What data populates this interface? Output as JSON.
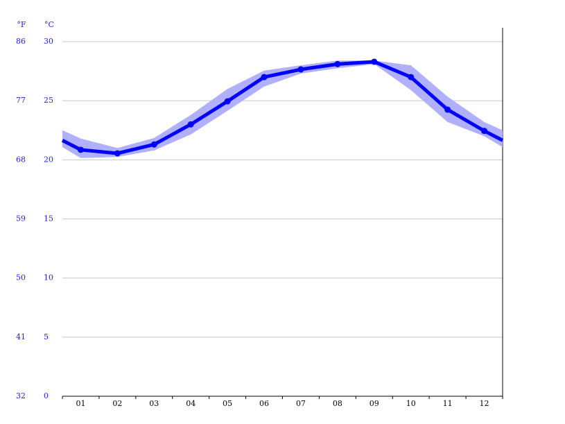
{
  "chart_data": {
    "type": "line",
    "y_unit_label": "°C",
    "y2_unit_label": "°F",
    "categories": [
      "01",
      "02",
      "03",
      "04",
      "05",
      "06",
      "07",
      "08",
      "09",
      "10",
      "11",
      "12"
    ],
    "series": [
      {
        "color": "#0000ff",
        "values": [
          20.85,
          20.55,
          21.3,
          23.0,
          24.95,
          27.0,
          27.65,
          28.1,
          28.3,
          27.0,
          24.25,
          22.45
        ]
      }
    ],
    "band": {
      "color": "#b0b0ff",
      "low": [
        20.15,
        20.25,
        20.8,
        22.15,
        24.15,
        26.2,
        27.3,
        27.75,
        28.1,
        25.9,
        23.2,
        22.0
      ],
      "high": [
        21.8,
        21.0,
        21.85,
        23.8,
        26.0,
        27.55,
        28.0,
        28.4,
        28.4,
        28.0,
        25.35,
        23.2
      ]
    },
    "ylim": [
      0,
      30
    ],
    "yticks": [
      0,
      5,
      10,
      15,
      20,
      25,
      30
    ],
    "y2lim": [
      32,
      86
    ],
    "y2ticks": [
      32,
      41,
      50,
      59,
      68,
      77,
      86
    ],
    "grid": true
  }
}
